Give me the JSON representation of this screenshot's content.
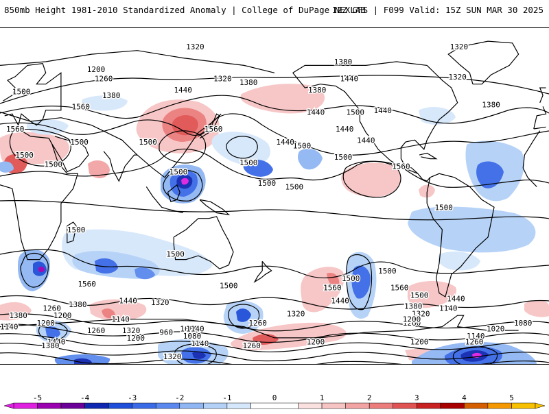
{
  "header": {
    "title": "850mb Height 1981-2010 Standardized Anomaly | College of DuPage NEXLAB",
    "run_info": "12Z GFS | F099 Valid: 15Z SUN MAR 30 2025"
  },
  "contour_labels": [
    {
      "text": "1320",
      "lon": 128,
      "lat": 80
    },
    {
      "text": "1320",
      "lon": -59,
      "lat": 80
    },
    {
      "text": "1380",
      "lon": -135,
      "lat": 72
    },
    {
      "text": "1200",
      "lon": 63,
      "lat": 68
    },
    {
      "text": "1260",
      "lon": 68,
      "lat": 63
    },
    {
      "text": "1320",
      "lon": 146,
      "lat": 63
    },
    {
      "text": "1380",
      "lon": 163,
      "lat": 61
    },
    {
      "text": "1440",
      "lon": -131,
      "lat": 63
    },
    {
      "text": "1380",
      "lon": -152,
      "lat": 57
    },
    {
      "text": "1320",
      "lon": -60,
      "lat": 64
    },
    {
      "text": "1500",
      "lon": 14,
      "lat": 56
    },
    {
      "text": "1380",
      "lon": 73,
      "lat": 54
    },
    {
      "text": "1440",
      "lon": 120,
      "lat": 57
    },
    {
      "text": "1560",
      "lon": 53,
      "lat": 48
    },
    {
      "text": "1440",
      "lon": -109,
      "lat": 46
    },
    {
      "text": "1380",
      "lon": -38,
      "lat": 49
    },
    {
      "text": "1500",
      "lon": -127,
      "lat": 45
    },
    {
      "text": "1440",
      "lon": -153,
      "lat": 45
    },
    {
      "text": "1560",
      "lon": 140,
      "lat": 36
    },
    {
      "text": "1560",
      "lon": 10,
      "lat": 36
    },
    {
      "text": "1500",
      "lon": 52,
      "lat": 29
    },
    {
      "text": "1500",
      "lon": 97,
      "lat": 29
    },
    {
      "text": "1440",
      "lon": -134,
      "lat": 36
    },
    {
      "text": "1440",
      "lon": -120,
      "lat": 30
    },
    {
      "text": "1500",
      "lon": -162,
      "lat": 27
    },
    {
      "text": "1440",
      "lon": -173,
      "lat": 29
    },
    {
      "text": "1500",
      "lon": 16,
      "lat": 22
    },
    {
      "text": "1500",
      "lon": 35,
      "lat": 17
    },
    {
      "text": "1500",
      "lon": 163,
      "lat": 18
    },
    {
      "text": "1500",
      "lon": 117,
      "lat": 13
    },
    {
      "text": "1560",
      "lon": -97,
      "lat": 16
    },
    {
      "text": "1500",
      "lon": -135,
      "lat": 21
    },
    {
      "text": "1500",
      "lon": 175,
      "lat": 7
    },
    {
      "text": "1500",
      "lon": -167,
      "lat": 5
    },
    {
      "text": "1500",
      "lon": -69,
      "lat": -6
    },
    {
      "text": "1500",
      "lon": 50,
      "lat": -18
    },
    {
      "text": "1500",
      "lon": 115,
      "lat": -31
    },
    {
      "text": "1500",
      "lon": 150,
      "lat": -48
    },
    {
      "text": "1500",
      "lon": -106,
      "lat": -40
    },
    {
      "text": "1500",
      "lon": -130,
      "lat": -44
    },
    {
      "text": "1560",
      "lon": 57,
      "lat": -47
    },
    {
      "text": "1560",
      "lon": -142,
      "lat": -49
    },
    {
      "text": "1560",
      "lon": -98,
      "lat": -49
    },
    {
      "text": "1500",
      "lon": -85,
      "lat": -53
    },
    {
      "text": "1440",
      "lon": -137,
      "lat": -56
    },
    {
      "text": "1440",
      "lon": 84,
      "lat": -56
    },
    {
      "text": "1380",
      "lon": 51,
      "lat": -58
    },
    {
      "text": "1320",
      "lon": 105,
      "lat": -57
    },
    {
      "text": "1440",
      "lon": -61,
      "lat": -55
    },
    {
      "text": "1320",
      "lon": -84,
      "lat": -63
    },
    {
      "text": "1380",
      "lon": -89,
      "lat": -59
    },
    {
      "text": "1260",
      "lon": 34,
      "lat": -60
    },
    {
      "text": "1140",
      "lon": -66,
      "lat": -60
    },
    {
      "text": "1380",
      "lon": 12,
      "lat": -64
    },
    {
      "text": "1320",
      "lon": -166,
      "lat": -63
    },
    {
      "text": "1260",
      "lon": -90,
      "lat": -68
    },
    {
      "text": "1200",
      "lon": 41,
      "lat": -64
    },
    {
      "text": "1200",
      "lon": -90,
      "lat": -66
    },
    {
      "text": "1260",
      "lon": 169,
      "lat": -68
    },
    {
      "text": "1080",
      "lon": -17,
      "lat": -68
    },
    {
      "text": "1140",
      "lon": 79,
      "lat": -66
    },
    {
      "text": "1200",
      "lon": 30,
      "lat": -68
    },
    {
      "text": "1140",
      "lon": 6,
      "lat": -70
    },
    {
      "text": "1020",
      "lon": -35,
      "lat": -71
    },
    {
      "text": "1080",
      "lon": 124,
      "lat": -71
    },
    {
      "text": "1320",
      "lon": 86,
      "lat": -72
    },
    {
      "text": "1260",
      "lon": 63,
      "lat": -72
    },
    {
      "text": "1140",
      "lon": 128,
      "lat": -71
    },
    {
      "text": "960",
      "lon": 109,
      "lat": -73
    },
    {
      "text": "1140",
      "lon": -48,
      "lat": -75
    },
    {
      "text": "1080",
      "lon": 126,
      "lat": -75
    },
    {
      "text": "1200",
      "lon": 89,
      "lat": -76
    },
    {
      "text": "1260",
      "lon": -49,
      "lat": -78
    },
    {
      "text": "1200",
      "lon": -85,
      "lat": -78
    },
    {
      "text": "1200",
      "lon": -153,
      "lat": -78
    },
    {
      "text": "1140",
      "lon": 131,
      "lat": -79
    },
    {
      "text": "1440",
      "lon": 37,
      "lat": -78
    },
    {
      "text": "1380",
      "lon": 33,
      "lat": -80
    },
    {
      "text": "1260",
      "lon": 165,
      "lat": -80
    },
    {
      "text": "1320",
      "lon": 113,
      "lat": -86
    }
  ],
  "colorbar": {
    "tick_labels": [
      "-5",
      "-4",
      "-3",
      "-2",
      "-1",
      "0",
      "1",
      "2",
      "3",
      "4",
      "5"
    ],
    "bins": [
      {
        "from": -5.5,
        "to": -5,
        "color": "#e020e0"
      },
      {
        "from": -5,
        "to": -4.5,
        "color": "#9a00b0"
      },
      {
        "from": -4.5,
        "to": -4,
        "color": "#6a0098"
      },
      {
        "from": -4,
        "to": -3.5,
        "color": "#1028b0"
      },
      {
        "from": -3.5,
        "to": -3,
        "color": "#1f4fd8"
      },
      {
        "from": -3,
        "to": -2.5,
        "color": "#3a6ae6"
      },
      {
        "from": -2.5,
        "to": -2,
        "color": "#5a88ee"
      },
      {
        "from": -2,
        "to": -1.5,
        "color": "#8fb6f3"
      },
      {
        "from": -1.5,
        "to": -1,
        "color": "#b3d1f7"
      },
      {
        "from": -1,
        "to": -0.5,
        "color": "#d5e7fb"
      },
      {
        "from": -0.5,
        "to": 0.5,
        "color": "#ffffff"
      },
      {
        "from": 0.5,
        "to": 1,
        "color": "#fbe0e0"
      },
      {
        "from": 1,
        "to": 1.5,
        "color": "#f7c4c4"
      },
      {
        "from": 1.5,
        "to": 2,
        "color": "#f2a4a4"
      },
      {
        "from": 2,
        "to": 2.5,
        "color": "#ec7d7d"
      },
      {
        "from": 2.5,
        "to": 3,
        "color": "#e05353"
      },
      {
        "from": 3,
        "to": 3.5,
        "color": "#c82121"
      },
      {
        "from": 3.5,
        "to": 4,
        "color": "#a80000"
      },
      {
        "from": 4,
        "to": 4.5,
        "color": "#d45e00"
      },
      {
        "from": 4.5,
        "to": 5,
        "color": "#f59800"
      },
      {
        "from": 5,
        "to": 5.5,
        "color": "#f7c000"
      }
    ]
  },
  "colors": {
    "land_outline": "#000000",
    "contour": "#000000",
    "background": "#ffffff"
  }
}
